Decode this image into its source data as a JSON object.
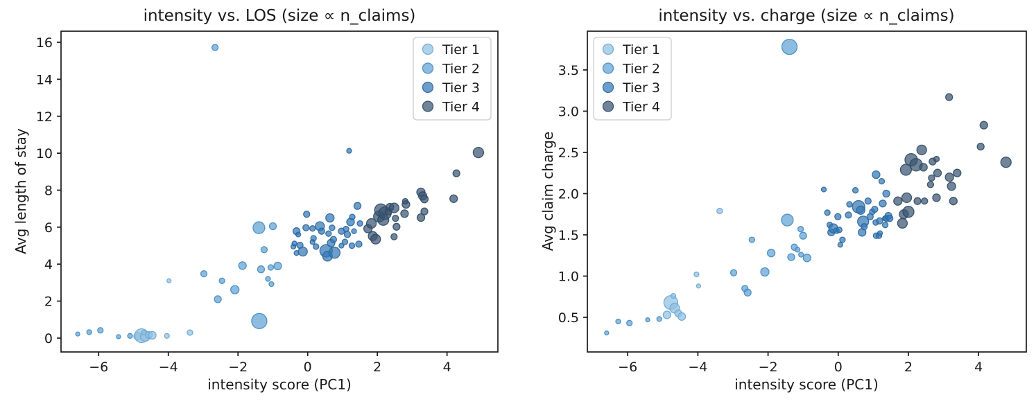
{
  "figure": {
    "background": "#ffffff"
  },
  "tiers": [
    {
      "label": "Tier 1",
      "fill": "#8fc0e2",
      "stroke": "#6ea6cf"
    },
    {
      "label": "Tier 2",
      "fill": "#5fa2d4",
      "stroke": "#4489bf"
    },
    {
      "label": "Tier 3",
      "fill": "#3579b5",
      "stroke": "#2a659c"
    },
    {
      "label": "Tier 4",
      "fill": "#3a5570",
      "stroke": "#2f4a66"
    }
  ],
  "chart_data": [
    {
      "type": "scatter",
      "title": "intensity vs. LOS (size ∝ n_claims)",
      "xlabel": "intensity score (PC1)",
      "ylabel": "Avg length of stay",
      "legend": {
        "position": "top-right",
        "entries": [
          "Tier 1",
          "Tier 2",
          "Tier 3",
          "Tier 4"
        ]
      },
      "axes": {
        "x": {
          "min": -7.08,
          "max": 5.46,
          "ticks": [
            -6,
            -4,
            -2,
            0,
            2,
            4
          ],
          "tick_labels": [
            "−6",
            "−4",
            "−2",
            "0",
            "2",
            "4"
          ]
        },
        "y": {
          "min": -0.75,
          "max": 16.6,
          "ticks": [
            0,
            2,
            4,
            6,
            8,
            10,
            12,
            14,
            16
          ],
          "tick_labels": [
            "0",
            "2",
            "4",
            "6",
            "8",
            "10",
            "12",
            "14",
            "16"
          ]
        }
      },
      "series": [
        {
          "name": "Tier 1",
          "tier": 0,
          "points": [
            [
              -4.88,
              0.1,
              5.5
            ],
            [
              -4.77,
              0.13,
              10
            ],
            [
              -4.66,
              0.09,
              7
            ],
            [
              -4.56,
              0.17,
              5
            ],
            [
              -4.46,
              0.15,
              5.5
            ],
            [
              -4.7,
              0.3,
              3.5
            ],
            [
              -4.04,
              0.12,
              3.5
            ],
            [
              -3.98,
              3.1,
              3
            ],
            [
              -3.38,
              0.3,
              4
            ]
          ]
        },
        {
          "name": "Tier 2",
          "tier": 1,
          "points": [
            [
              -6.6,
              0.22,
              3
            ],
            [
              -6.27,
              0.32,
              3.5
            ],
            [
              -5.95,
              0.42,
              4
            ],
            [
              -5.43,
              0.08,
              3
            ],
            [
              -5.1,
              0.12,
              3.5
            ],
            [
              -2.98,
              3.48,
              4.5
            ],
            [
              -2.66,
              15.72,
              4.5
            ],
            [
              -2.58,
              2.1,
              5
            ],
            [
              -2.46,
              3.1,
              4
            ],
            [
              -2.09,
              2.62,
              6
            ],
            [
              -1.87,
              3.92,
              5.5
            ],
            [
              -1.4,
              5.97,
              8.5
            ],
            [
              -1.39,
              0.92,
              11
            ],
            [
              -1.34,
              3.72,
              5
            ],
            [
              -1.25,
              4.78,
              4.5
            ],
            [
              -1.14,
              3.2,
              3.5
            ],
            [
              -1.06,
              3.82,
              4
            ],
            [
              -1.04,
              2.92,
              3.5
            ],
            [
              -1.0,
              6.05,
              5
            ],
            [
              -0.86,
              3.9,
              5.5
            ]
          ]
        },
        {
          "name": "Tier 3",
          "tier": 2,
          "points": [
            [
              -0.41,
              4.95,
              3.5
            ],
            [
              -0.38,
              5.12,
              3.5
            ],
            [
              -0.32,
              5.78,
              5
            ],
            [
              -0.32,
              4.6,
              3.5
            ],
            [
              -0.27,
              5.6,
              3.5
            ],
            [
              -0.22,
              5.02,
              4.5
            ],
            [
              -0.14,
              4.68,
              6.5
            ],
            [
              -0.05,
              5.97,
              4.5
            ],
            [
              -0.03,
              6.7,
              4.5
            ],
            [
              0.14,
              5.93,
              4
            ],
            [
              0.14,
              5.2,
              3.5
            ],
            [
              0.17,
              5.4,
              4
            ],
            [
              0.24,
              4.95,
              4
            ],
            [
              0.35,
              6.05,
              6.5
            ],
            [
              0.4,
              5.78,
              4.5
            ],
            [
              0.53,
              4.72,
              9
            ],
            [
              0.57,
              4.43,
              7
            ],
            [
              0.6,
              5.65,
              4
            ],
            [
              0.64,
              6.5,
              6
            ],
            [
              0.67,
              5.14,
              5.5
            ],
            [
              0.7,
              5.97,
              4
            ],
            [
              0.74,
              5.33,
              4.5
            ],
            [
              0.77,
              4.62,
              8
            ],
            [
              0.97,
              5.78,
              4.5
            ],
            [
              0.97,
              5.0,
              3.5
            ],
            [
              1.07,
              5.2,
              4
            ],
            [
              1.1,
              5.9,
              4
            ],
            [
              1.14,
              5.6,
              4.5
            ],
            [
              1.19,
              10.13,
              3.5
            ],
            [
              1.23,
              6.28,
              5.5
            ],
            [
              1.27,
              5.0,
              4
            ],
            [
              1.28,
              6.55,
              4
            ],
            [
              1.33,
              5.78,
              3.5
            ],
            [
              1.43,
              7.15,
              5
            ],
            [
              1.47,
              5.08,
              4.5
            ],
            [
              1.5,
              6.2,
              4
            ]
          ]
        },
        {
          "name": "Tier 4",
          "tier": 3,
          "points": [
            [
              1.73,
              5.92,
              6
            ],
            [
              1.83,
              6.2,
              7
            ],
            [
              1.87,
              5.52,
              6.5
            ],
            [
              1.95,
              5.35,
              7
            ],
            [
              2.05,
              6.58,
              8
            ],
            [
              2.1,
              6.92,
              9
            ],
            [
              2.17,
              6.4,
              8
            ],
            [
              2.22,
              6.76,
              9
            ],
            [
              2.32,
              6.85,
              5
            ],
            [
              2.36,
              7.08,
              5.5
            ],
            [
              2.48,
              7.04,
              7
            ],
            [
              2.48,
              5.48,
              4.5
            ],
            [
              2.52,
              6.48,
              4.5
            ],
            [
              2.55,
              6.02,
              5
            ],
            [
              2.78,
              6.73,
              5.5
            ],
            [
              2.82,
              7.23,
              5.5
            ],
            [
              2.8,
              7.4,
              4
            ],
            [
              3.25,
              7.89,
              6
            ],
            [
              3.3,
              7.69,
              6
            ],
            [
              3.35,
              7.52,
              5.5
            ],
            [
              3.35,
              6.85,
              5
            ],
            [
              3.25,
              6.52,
              5.5
            ],
            [
              4.19,
              7.54,
              5.5
            ],
            [
              4.27,
              8.91,
              5
            ],
            [
              4.9,
              10.04,
              7.5
            ]
          ]
        }
      ]
    },
    {
      "type": "scatter",
      "title": "intensity vs. charge (size ∝ n_claims)",
      "xlabel": "intensity score (PC1)",
      "ylabel": "Avg claim charge",
      "legend": {
        "position": "top-left",
        "entries": [
          "Tier 1",
          "Tier 2",
          "Tier 3",
          "Tier 4"
        ]
      },
      "axes": {
        "x": {
          "min": -7.15,
          "max": 5.36,
          "ticks": [
            -6,
            -4,
            -2,
            0,
            2,
            4
          ],
          "tick_labels": [
            "−6",
            "−4",
            "−2",
            "0",
            "2",
            "4"
          ]
        },
        "y": {
          "min": 0.08,
          "max": 3.97,
          "ticks": [
            0.5,
            1.0,
            1.5,
            2.0,
            2.5,
            3.0,
            3.5
          ],
          "tick_labels": [
            "0.5",
            "1.0",
            "1.5",
            "2.0",
            "2.5",
            "3.0",
            "3.5"
          ]
        }
      },
      "series": [
        {
          "name": "Tier 1",
          "tier": 0,
          "points": [
            [
              -4.88,
              0.53,
              5.5
            ],
            [
              -4.77,
              0.68,
              10
            ],
            [
              -4.66,
              0.61,
              7
            ],
            [
              -4.56,
              0.55,
              5
            ],
            [
              -4.46,
              0.51,
              5.5
            ],
            [
              -4.7,
              0.76,
              3.5
            ],
            [
              -4.04,
              1.02,
              3.5
            ],
            [
              -3.98,
              0.88,
              3
            ],
            [
              -3.38,
              1.79,
              4
            ]
          ]
        },
        {
          "name": "Tier 2",
          "tier": 1,
          "points": [
            [
              -6.6,
              0.31,
              3
            ],
            [
              -6.27,
              0.45,
              3.5
            ],
            [
              -5.95,
              0.43,
              4
            ],
            [
              -5.43,
              0.47,
              3
            ],
            [
              -5.1,
              0.48,
              3.5
            ],
            [
              -2.98,
              1.04,
              4.5
            ],
            [
              -2.66,
              0.85,
              4.5
            ],
            [
              -2.58,
              0.8,
              5
            ],
            [
              -2.46,
              1.44,
              4
            ],
            [
              -2.09,
              1.05,
              6
            ],
            [
              -1.91,
              1.28,
              5.5
            ],
            [
              -1.45,
              1.68,
              8.5
            ],
            [
              -1.39,
              3.78,
              11
            ],
            [
              -1.34,
              1.23,
              5
            ],
            [
              -1.25,
              1.35,
              4.5
            ],
            [
              -1.16,
              1.32,
              3.5
            ],
            [
              -1.07,
              1.57,
              4
            ],
            [
              -1.06,
              1.26,
              3.5
            ],
            [
              -1.0,
              1.49,
              5
            ],
            [
              -0.89,
              1.22,
              5.5
            ]
          ]
        },
        {
          "name": "Tier 3",
          "tier": 2,
          "points": [
            [
              -0.41,
              2.05,
              3.5
            ],
            [
              -0.31,
              1.77,
              4
            ],
            [
              -0.24,
              1.62,
              4
            ],
            [
              -0.2,
              1.53,
              5
            ],
            [
              -0.14,
              1.58,
              6.5
            ],
            [
              -0.05,
              1.55,
              4
            ],
            [
              -0.01,
              1.72,
              4.5
            ],
            [
              0.03,
              1.56,
              4
            ],
            [
              0.06,
              1.38,
              3.5
            ],
            [
              0.12,
              1.44,
              4
            ],
            [
              0.29,
              1.74,
              4.5
            ],
            [
              0.32,
              1.87,
              4
            ],
            [
              0.49,
              2.04,
              4
            ],
            [
              0.58,
              1.84,
              9
            ],
            [
              0.64,
              1.8,
              6
            ],
            [
              0.68,
              1.53,
              5.5
            ],
            [
              0.71,
              1.66,
              8
            ],
            [
              0.74,
              1.6,
              4.5
            ],
            [
              0.85,
              1.91,
              4.5
            ],
            [
              0.91,
              1.72,
              4.5
            ],
            [
              0.97,
              1.78,
              4
            ],
            [
              1.04,
              1.81,
              4.5
            ],
            [
              1.07,
              1.65,
              4
            ],
            [
              1.08,
              2.23,
              5.5
            ],
            [
              1.08,
              1.49,
              4
            ],
            [
              1.16,
              1.49,
              4
            ],
            [
              1.18,
              1.67,
              4.5
            ],
            [
              1.19,
              1.52,
              3.5
            ],
            [
              1.24,
              2.15,
              4
            ],
            [
              1.27,
              1.88,
              5
            ],
            [
              1.33,
              1.7,
              3.5
            ],
            [
              1.34,
              1.62,
              4
            ],
            [
              1.37,
              2.0,
              5
            ],
            [
              1.38,
              1.7,
              4.5
            ],
            [
              1.43,
              1.73,
              5
            ],
            [
              1.47,
              1.7,
              4.5
            ]
          ]
        },
        {
          "name": "Tier 4",
          "tier": 3,
          "points": [
            [
              1.7,
              1.91,
              6
            ],
            [
              1.83,
              1.64,
              7
            ],
            [
              1.87,
              1.75,
              6.5
            ],
            [
              1.95,
              1.95,
              7
            ],
            [
              2.0,
              1.78,
              8
            ],
            [
              2.08,
              2.41,
              9
            ],
            [
              1.93,
              2.29,
              8
            ],
            [
              2.22,
              2.35,
              9
            ],
            [
              2.26,
              1.91,
              5
            ],
            [
              2.43,
              2.32,
              5.5
            ],
            [
              2.46,
              1.91,
              4.5
            ],
            [
              2.38,
              2.53,
              7
            ],
            [
              2.66,
              2.19,
              4.5
            ],
            [
              2.63,
              2.11,
              4.5
            ],
            [
              2.69,
              2.39,
              5
            ],
            [
              2.8,
              2.42,
              4
            ],
            [
              2.8,
              1.95,
              5.5
            ],
            [
              2.83,
              2.25,
              5.5
            ],
            [
              3.17,
              2.2,
              6
            ],
            [
              3.28,
              1.91,
              5.5
            ],
            [
              3.23,
              2.09,
              6
            ],
            [
              3.16,
              3.17,
              5
            ],
            [
              3.39,
              2.25,
              5.5
            ],
            [
              4.15,
              2.83,
              5.5
            ],
            [
              4.06,
              2.57,
              5
            ],
            [
              4.78,
              2.38,
              7.5
            ]
          ]
        }
      ]
    }
  ]
}
